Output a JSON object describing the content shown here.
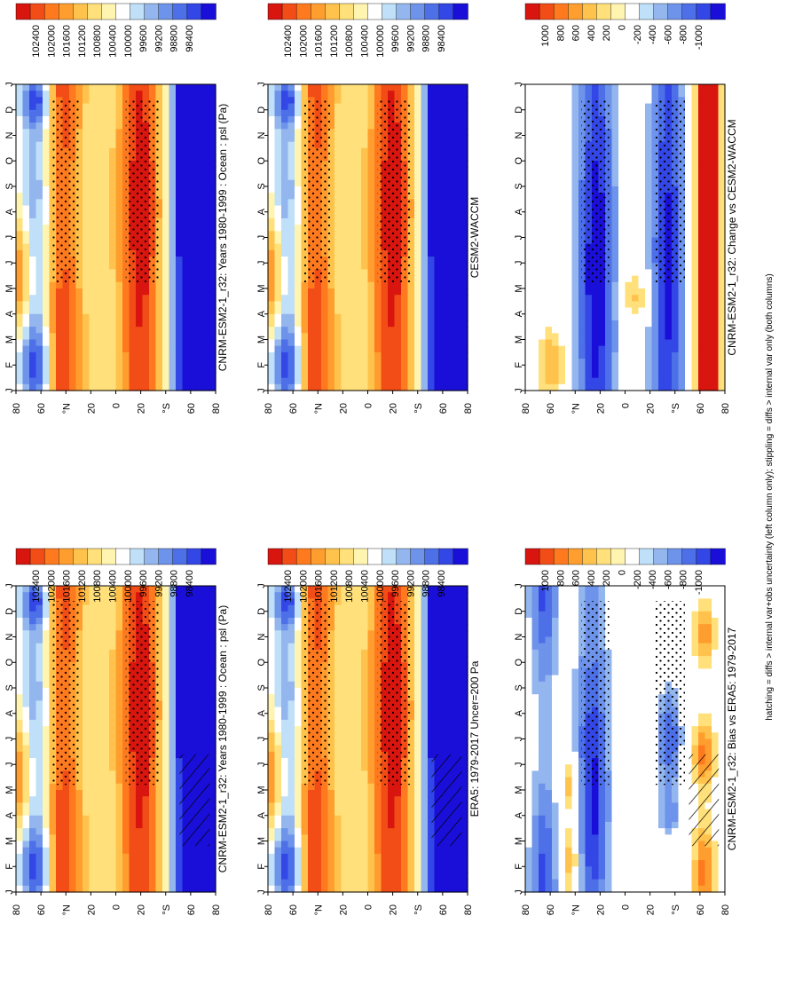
{
  "figure": {
    "footnote": "hatching = diffs > internal var+obs uncertainty (left column only); stippling = diffs > internal var only (both columns)"
  },
  "chart_data": [
    {
      "type": "heatmap",
      "panel": "model-left",
      "title": "CNRM-ESM2-1_r32: Years 1980-1999 : Ocean : psl (Pa)",
      "months": [
        "J",
        "F",
        "M",
        "A",
        "M",
        "J",
        "J",
        "A",
        "S",
        "O",
        "N",
        "D",
        "J"
      ],
      "month_axis_end": "D",
      "lat_ticks": [
        "80",
        "60",
        "°N",
        "20",
        "0",
        "20",
        "°S",
        "60",
        "80"
      ],
      "colorbar": [
        "102400",
        "102000",
        "101600",
        "101200",
        "100800",
        "100400",
        "100000",
        "99600",
        "99200",
        "98800",
        "98400"
      ],
      "kind": "abs",
      "hatching": true,
      "stippling": true
    },
    {
      "type": "heatmap",
      "panel": "model-right",
      "title": "CNRM-ESM2-1_r32: Years 1980-1999 : Ocean : psl (Pa)",
      "months": [
        "J",
        "F",
        "M",
        "A",
        "M",
        "J",
        "J",
        "A",
        "S",
        "O",
        "N",
        "D",
        "J"
      ],
      "month_axis_end": "D",
      "lat_ticks": [
        "80",
        "60",
        "°N",
        "20",
        "0",
        "20",
        "°S",
        "60",
        "80"
      ],
      "colorbar": [
        "102400",
        "102000",
        "101600",
        "101200",
        "100800",
        "100400",
        "100000",
        "99600",
        "99200",
        "98800",
        "98400"
      ],
      "kind": "abs",
      "hatching": false,
      "stippling": true
    },
    {
      "type": "heatmap",
      "panel": "reference-left",
      "title": "ERA5: 1979-2017 Uncer=200 Pa",
      "months": [
        "J",
        "F",
        "M",
        "A",
        "M",
        "J",
        "J",
        "A",
        "S",
        "O",
        "N",
        "D",
        "J"
      ],
      "month_axis_end": "D",
      "lat_ticks": [
        "80",
        "60",
        "°N",
        "20",
        "0",
        "20",
        "°S",
        "60",
        "80"
      ],
      "colorbar": [
        "102400",
        "102000",
        "101600",
        "101200",
        "100800",
        "100400",
        "100000",
        "99600",
        "99200",
        "98800",
        "98400"
      ],
      "kind": "abs",
      "hatching": true,
      "stippling": true
    },
    {
      "type": "heatmap",
      "panel": "reference-right",
      "title": "CESM2-WACCM",
      "months": [
        "J",
        "F",
        "M",
        "A",
        "M",
        "J",
        "J",
        "A",
        "S",
        "O",
        "N",
        "D",
        "J"
      ],
      "month_axis_end": "D",
      "lat_ticks": [
        "80",
        "60",
        "°N",
        "20",
        "0",
        "20",
        "°S",
        "60",
        "80"
      ],
      "colorbar": [
        "102400",
        "102000",
        "101600",
        "101200",
        "100800",
        "100400",
        "100000",
        "99600",
        "99200",
        "98800",
        "98400"
      ],
      "kind": "abs",
      "hatching": false,
      "stippling": true
    },
    {
      "type": "heatmap",
      "panel": "diff-left",
      "title": "CNRM-ESM2-1_r32: Bias vs ERA5: 1979-2017",
      "months": [
        "J",
        "F",
        "M",
        "A",
        "M",
        "J",
        "J",
        "A",
        "S",
        "O",
        "N",
        "D",
        "J"
      ],
      "month_axis_end": "D",
      "lat_ticks": [
        "80",
        "60",
        "°N",
        "20",
        "0",
        "20",
        "°S",
        "60",
        "80"
      ],
      "colorbar": [
        "1000",
        "800",
        "600",
        "400",
        "200",
        "0",
        "-200",
        "-400",
        "-600",
        "-800",
        "-1000"
      ],
      "kind": "diffL",
      "hatching": true,
      "stippling": true
    },
    {
      "type": "heatmap",
      "panel": "diff-right",
      "title": "CNRM-ESM2-1_r32: Change vs CESM2-WACCM",
      "months": [
        "J",
        "F",
        "M",
        "A",
        "M",
        "J",
        "J",
        "A",
        "S",
        "O",
        "N",
        "D",
        "J"
      ],
      "month_axis_end": "D",
      "lat_ticks": [
        "80",
        "60",
        "°N",
        "20",
        "0",
        "20",
        "°S",
        "60",
        "80"
      ],
      "colorbar": [
        "1000",
        "800",
        "600",
        "400",
        "200",
        "0",
        "-200",
        "-400",
        "-600",
        "-800",
        "-1000"
      ],
      "kind": "diffR",
      "hatching": false,
      "stippling": true
    }
  ],
  "palette": {
    "scale": [
      "#1a0fd8",
      "#3346e6",
      "#4d6fe8",
      "#6e93ea",
      "#93b6ee",
      "#bfe0f8",
      "#ffffff",
      "#fff5b0",
      "#ffe07a",
      "#ffc34d",
      "#ff9e2e",
      "#ff7a1f",
      "#f24d17",
      "#d8150f"
    ]
  }
}
